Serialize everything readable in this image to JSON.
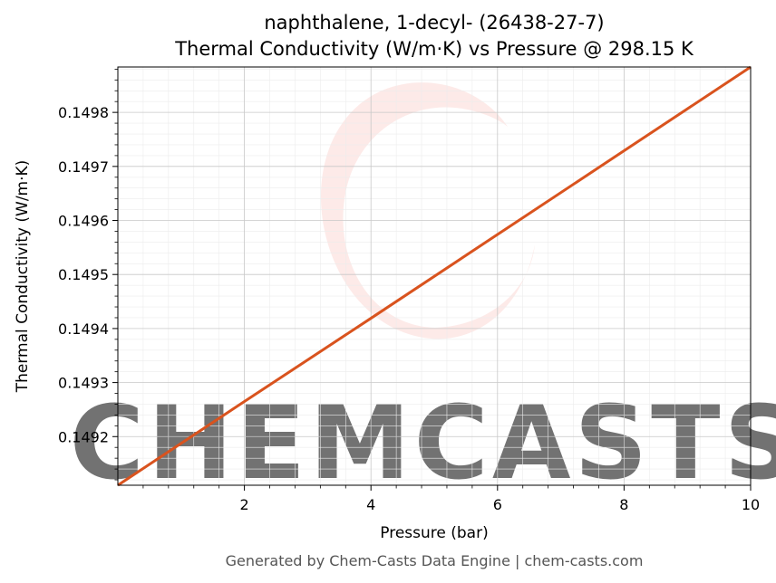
{
  "chart_data": {
    "type": "line",
    "title_line1": "naphthalene, 1-decyl- (26438-27-7)",
    "title_line2": "Thermal Conductivity (W/m·K) vs Pressure @ 298.15 K",
    "xlabel": "Pressure (bar)",
    "ylabel": "Thermal Conductivity (W/m·K)",
    "xlim": [
      0.0,
      10.0
    ],
    "ylim": [
      0.14911,
      0.149884
    ],
    "x_ticks": [
      2,
      4,
      6,
      8,
      10
    ],
    "x_tick_labels": [
      "2",
      "4",
      "6",
      "8",
      "10"
    ],
    "y_ticks": [
      0.1492,
      0.1493,
      0.1494,
      0.1495,
      0.1496,
      0.1497,
      0.1498
    ],
    "y_tick_labels": [
      "0.1492",
      "0.1493",
      "0.1494",
      "0.1495",
      "0.1496",
      "0.1497",
      "0.1498"
    ],
    "grid": true,
    "minor_grid": true,
    "line_color": "#d9531e",
    "series": [
      {
        "x": [
          0.0,
          2.0,
          4.0,
          6.0,
          8.0,
          10.0
        ],
        "y": [
          0.14911,
          0.149265,
          0.149419,
          0.149574,
          0.149729,
          0.149884
        ]
      }
    ]
  },
  "watermark": {
    "text": "CHEMCASTS",
    "color": "#fbd9d6"
  },
  "footer": "Generated by Chem-Casts Data Engine | chem-casts.com"
}
